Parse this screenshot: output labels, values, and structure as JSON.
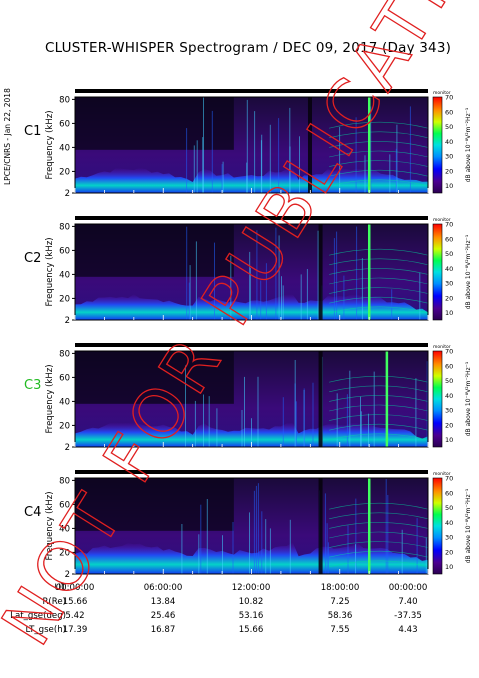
{
  "title": "CLUSTER-WHISPER Spectrogram / DEC 09, 2017 (Day 343)",
  "side_note": "LPCE/CNRS - Jan 22, 2018",
  "stamp_text": "NOT FOR PUBLICATION",
  "colorbar": {
    "top_label": "monitor",
    "ticks": [
      "70",
      "60",
      "50",
      "40",
      "30",
      "20",
      "10"
    ],
    "unit_label": "dB above 10⁻⁸V²m⁻²Hz⁻¹"
  },
  "chart_data": [
    {
      "type": "heatmap",
      "panel": "C1",
      "panel_color": "#000000",
      "ylabel": "Frequency (kHz)",
      "yticks": [
        "80",
        "60",
        "40",
        "20",
        "2"
      ],
      "ylim": [
        2,
        82
      ],
      "xlim": [
        "00:00:00",
        "24:00:00"
      ],
      "zlim": [
        5,
        70
      ]
    },
    {
      "type": "heatmap",
      "panel": "C2",
      "panel_color": "#000000",
      "ylabel": "Frequency (kHz)",
      "yticks": [
        "80",
        "60",
        "40",
        "20",
        "2"
      ],
      "ylim": [
        2,
        82
      ],
      "xlim": [
        "00:00:00",
        "24:00:00"
      ],
      "zlim": [
        5,
        70
      ]
    },
    {
      "type": "heatmap",
      "panel": "C3",
      "panel_color": "#22bb22",
      "ylabel": "Frequency (kHz)",
      "yticks": [
        "80",
        "60",
        "40",
        "20",
        "2"
      ],
      "ylim": [
        2,
        82
      ],
      "xlim": [
        "00:00:00",
        "24:00:00"
      ],
      "zlim": [
        5,
        70
      ]
    },
    {
      "type": "heatmap",
      "panel": "C4",
      "panel_color": "#000000",
      "ylabel": "Frequency (kHz)",
      "yticks": [
        "80",
        "60",
        "40",
        "20",
        "2"
      ],
      "ylim": [
        2,
        82
      ],
      "xlim": [
        "00:00:00",
        "24:00:00"
      ],
      "zlim": [
        5,
        70
      ]
    }
  ],
  "footer": {
    "rows": [
      {
        "label": "UT",
        "values": [
          "00:00:00",
          "06:00:00",
          "12:00:00",
          "18:00:00",
          "00:00:00"
        ]
      },
      {
        "label": "R(Re)",
        "values": [
          "15.66",
          "13.84",
          "10.82",
          "7.25",
          "7.40"
        ]
      },
      {
        "label": "Lat_gse(deg)",
        "values": [
          "5.42",
          "25.46",
          "53.16",
          "58.36",
          "-37.35"
        ]
      },
      {
        "label": "LT_gse(h)",
        "values": [
          "17.39",
          "16.87",
          "15.66",
          "7.55",
          "4.43"
        ]
      }
    ]
  }
}
